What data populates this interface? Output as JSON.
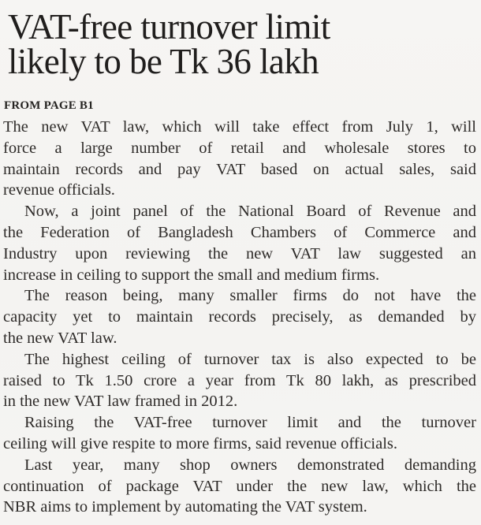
{
  "article": {
    "headline": {
      "line1": "VAT-free turnover limit",
      "line2": "likely to be Tk 36 lakh"
    },
    "kicker": "FROM PAGE B1",
    "paragraphs": [
      {
        "lines": [
          "The new VAT law, which will take effect from July 1, will",
          "force a large number of retail and wholesale stores to",
          "maintain records and pay VAT based on actual sales, said",
          "revenue officials."
        ]
      },
      {
        "lines": [
          "Now, a joint panel of the National Board of Revenue and",
          "the Federation of Bangladesh Chambers of Commerce and",
          "Industry upon reviewing the new VAT law suggested an",
          "increase in ceiling to support the small and medium firms."
        ]
      },
      {
        "lines": [
          "The reason being, many smaller firms do not have the",
          "capacity yet to maintain records precisely, as demanded by",
          "the new VAT law."
        ]
      },
      {
        "lines": [
          "The highest ceiling of turnover tax is also expected to be",
          "raised to Tk 1.50 crore a year from Tk 80 lakh, as prescribed",
          "in the new VAT law framed in 2012."
        ]
      },
      {
        "lines": [
          "Raising the VAT-free turnover limit and the turnover",
          "ceiling will give respite to more firms, said revenue officials."
        ]
      },
      {
        "lines": [
          "Last year, many shop owners demonstrated demanding",
          "continuation of package VAT under the new law, which the",
          "NBR aims to implement by automating the VAT system."
        ]
      }
    ],
    "colors": {
      "background": "#f5f4f2",
      "body_text": "#2e2b29",
      "headline_text": "#201e1d"
    }
  }
}
